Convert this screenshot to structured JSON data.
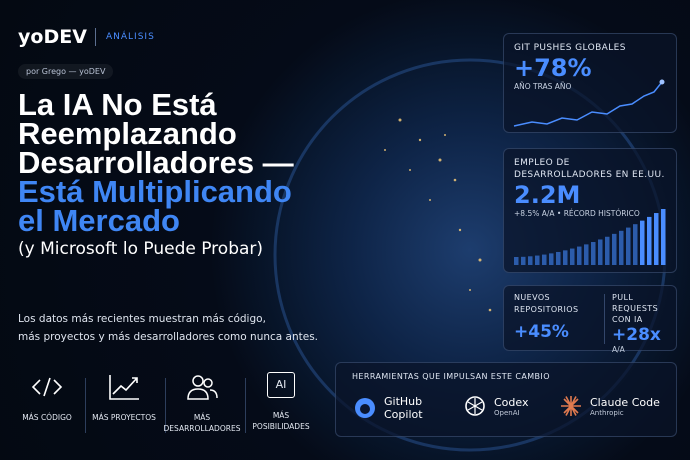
{
  "header": {
    "brand": "yoDEV",
    "section": "ANÁLISIS"
  },
  "byline": "por Grego — yoDEV",
  "headline": {
    "lines": [
      "La IA No Está",
      "Reemplazando",
      "Desarrolladores —"
    ],
    "highlight": [
      "Está Multiplicando",
      "el Mercado"
    ],
    "subtitle": "(y Microsoft lo Puede Probar)"
  },
  "description": [
    "Los datos más recientes muestran más código,",
    "más proyectos y más desarrolladores como nunca antes."
  ],
  "features": [
    {
      "label": [
        "MÁS CÓDIGO"
      ]
    },
    {
      "label": [
        "MÁS PROYECTOS"
      ]
    },
    {
      "label": [
        "MÁS",
        "DESARROLLADORES"
      ]
    },
    {
      "icon_text": "AI",
      "label": [
        "MÁS",
        "POSIBILIDADES"
      ]
    }
  ],
  "stats": {
    "git_pushes": {
      "title": "GIT PUSHES GLOBALES",
      "value": "+78%",
      "caption": "AÑO TRAS AÑO"
    },
    "employment": {
      "title": "EMPLEO DE DESARROLLADORES EN EE.UU.",
      "value": "2.2M",
      "caption": "+8.5% A/A • RÉCORD HISTÓRICO"
    },
    "repositories": {
      "title": "NUEVOS REPOSITORIOS",
      "value": "+45%"
    },
    "pull_requests": {
      "title": "PULL REQUESTS CON IA",
      "value": "+28x",
      "caption": "A/A"
    }
  },
  "tools": {
    "title": "HERRAMIENTAS QUE IMPULSAN ESTE CAMBIO",
    "items": [
      {
        "name": [
          "GitHub",
          "Copilot"
        ]
      },
      {
        "name": [
          "Codex"
        ],
        "vendor": "OpenAI"
      },
      {
        "name": [
          "Claude Code"
        ],
        "vendor": "Anthropic"
      }
    ]
  }
}
